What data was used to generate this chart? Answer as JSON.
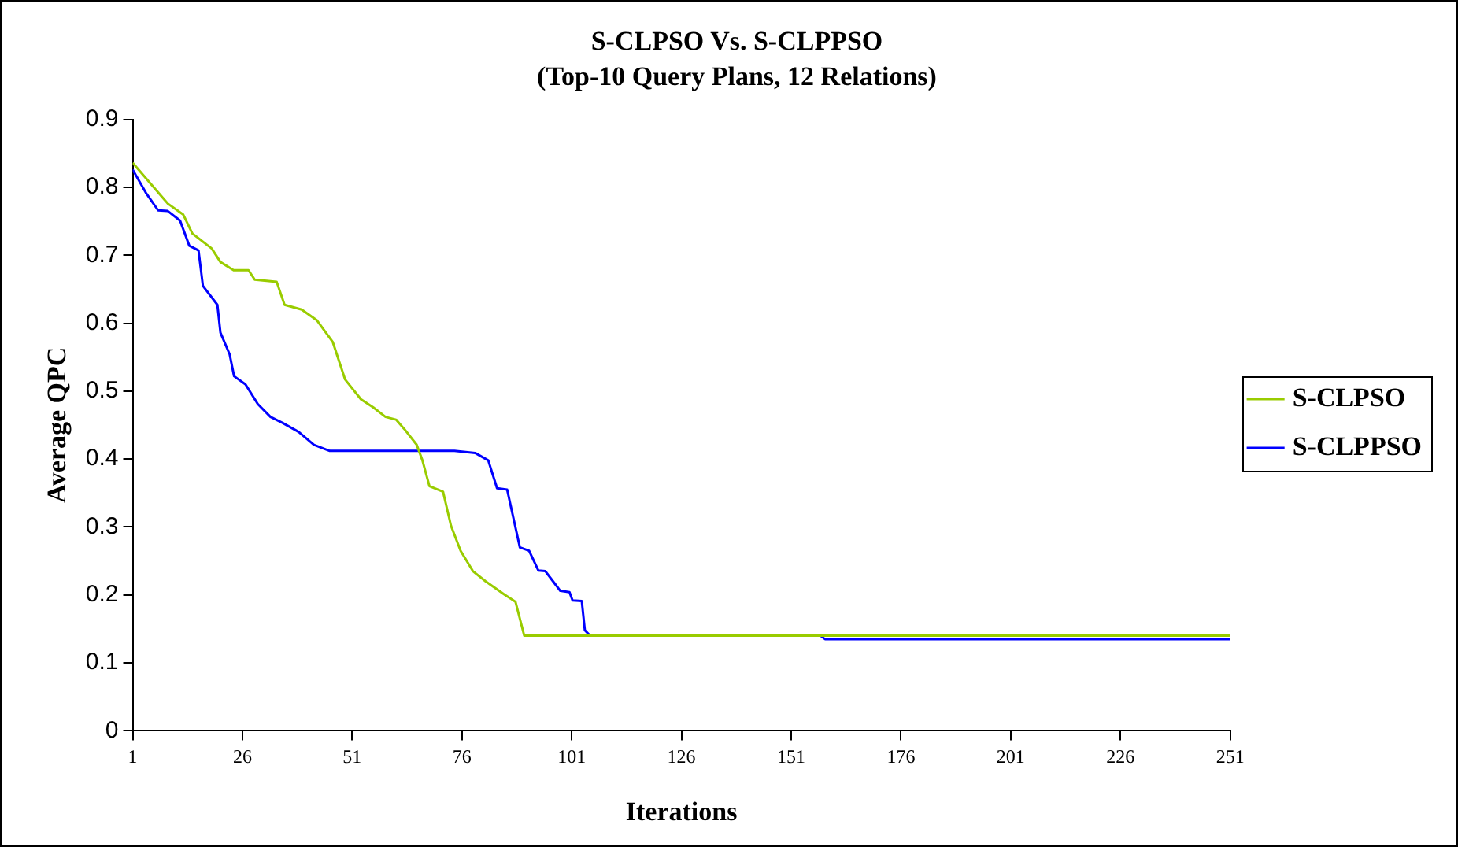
{
  "chart_data": {
    "type": "line",
    "title": "S-CLPSO Vs. S-CLPPSO",
    "subtitle": "(Top-10 Query Plans, 12 Relations)",
    "xlabel": "Iterations",
    "ylabel": "Average QPC",
    "xlim": [
      1,
      251
    ],
    "xticks": [
      1,
      26,
      51,
      76,
      101,
      126,
      151,
      176,
      201,
      226,
      251
    ],
    "ylim": [
      0,
      0.9
    ],
    "yticks": [
      0,
      0.1,
      0.2,
      0.3,
      0.4,
      0.5,
      0.6,
      0.7,
      0.8,
      0.9
    ],
    "legend": "right",
    "marker": "none",
    "line_style": "solid",
    "series": [
      {
        "name": "S-CLPSO",
        "color": "#99cc00",
        "x": [
          1,
          5,
          9,
          12.5,
          14.6,
          19,
          21,
          24,
          27.4,
          28.8,
          33.8,
          35.6,
          39.5,
          43,
          46.6,
          49.4,
          53,
          55.8,
          58.6,
          61,
          62.9,
          65.7,
          67,
          68.6,
          71.7,
          73.5,
          75.7,
          78.5,
          81.4,
          85.6,
          88.2,
          90.2,
          251
        ],
        "values": [
          0.836,
          0.806,
          0.776,
          0.76,
          0.732,
          0.71,
          0.69,
          0.678,
          0.678,
          0.664,
          0.661,
          0.627,
          0.62,
          0.604,
          0.572,
          0.517,
          0.488,
          0.476,
          0.462,
          0.458,
          0.444,
          0.421,
          0.398,
          0.36,
          0.352,
          0.302,
          0.265,
          0.235,
          0.22,
          0.201,
          0.19,
          0.14,
          0.14
        ]
      },
      {
        "name": "S-CLPPSO",
        "color": "#0000ff",
        "x": [
          1,
          4,
          6.8,
          9,
          11.8,
          13.9,
          16,
          17,
          20.3,
          21,
          23.1,
          24.1,
          26.7,
          29.5,
          32.4,
          35.2,
          38.8,
          42.3,
          45.9,
          74.3,
          79,
          82,
          84,
          86.3,
          89.2,
          91.3,
          93.4,
          95,
          97,
          98.4,
          100.5,
          101.2,
          103.3,
          104,
          105.2,
          157.7,
          158.7,
          251
        ],
        "values": [
          0.826,
          0.792,
          0.766,
          0.765,
          0.751,
          0.714,
          0.707,
          0.655,
          0.627,
          0.586,
          0.554,
          0.522,
          0.51,
          0.481,
          0.462,
          0.453,
          0.44,
          0.421,
          0.412,
          0.412,
          0.409,
          0.398,
          0.357,
          0.355,
          0.27,
          0.265,
          0.236,
          0.235,
          0.218,
          0.206,
          0.204,
          0.192,
          0.191,
          0.148,
          0.14,
          0.14,
          0.135,
          0.135
        ]
      }
    ]
  }
}
